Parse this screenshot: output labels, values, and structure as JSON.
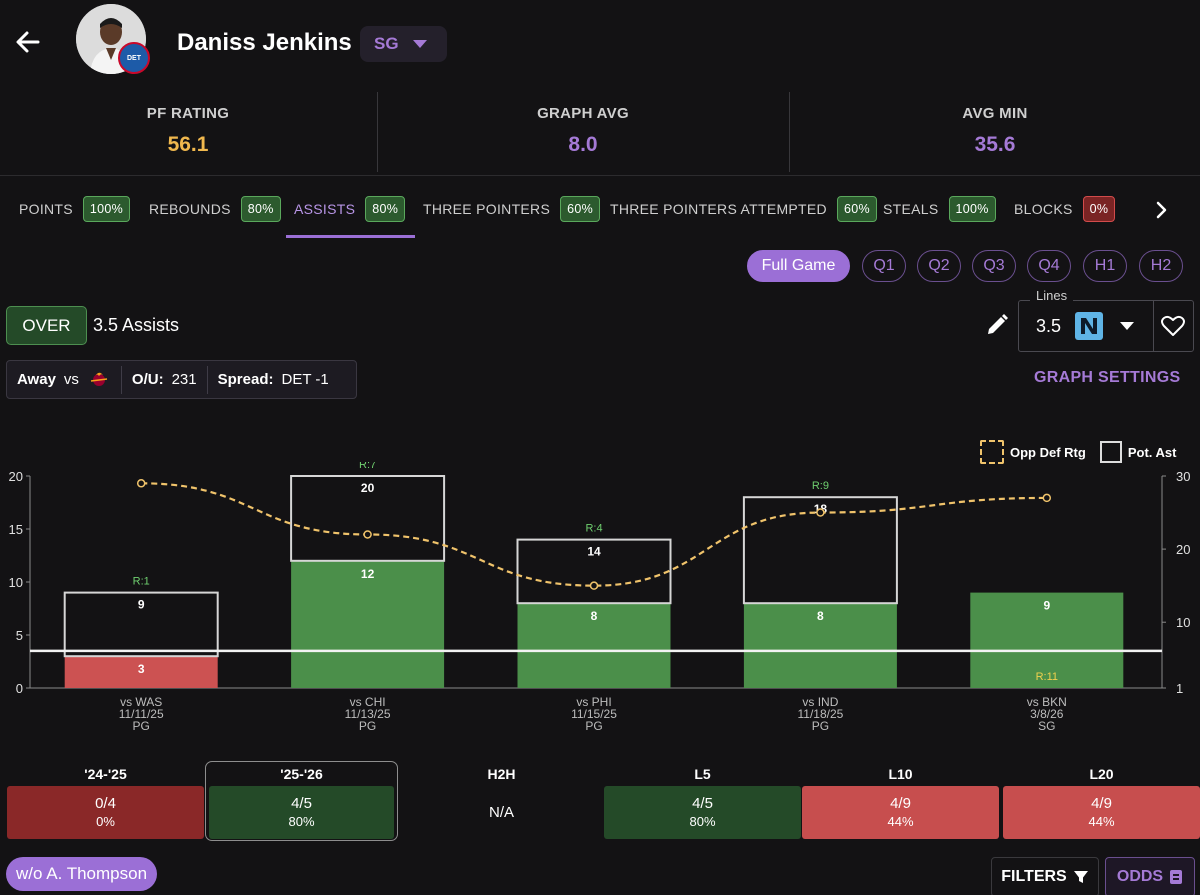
{
  "player": {
    "name": "Daniss Jenkins",
    "position": "SG",
    "team_logo_text": "DET"
  },
  "stats": [
    {
      "label": "PF RATING",
      "value": "56.1",
      "color": "#f0b84e"
    },
    {
      "label": "GRAPH AVG",
      "value": "8.0",
      "color": "#a57ad6"
    },
    {
      "label": "AVG MIN",
      "value": "35.6",
      "color": "#a57ad6"
    }
  ],
  "tabs": [
    {
      "label": "POINTS",
      "badge": "100%",
      "color": "green"
    },
    {
      "label": "REBOUNDS",
      "badge": "80%",
      "color": "green"
    },
    {
      "label": "ASSISTS",
      "badge": "80%",
      "color": "green",
      "active": true
    },
    {
      "label": "THREE POINTERS",
      "badge": "60%",
      "color": "green"
    },
    {
      "label": "THREE POINTERS ATTEMPTED",
      "badge": "60%",
      "color": "green"
    },
    {
      "label": "STEALS",
      "badge": "100%",
      "color": "green"
    },
    {
      "label": "BLOCKS",
      "badge": "0%",
      "color": "red"
    }
  ],
  "periods": [
    "Full Game",
    "Q1",
    "Q2",
    "Q3",
    "Q4",
    "H1",
    "H2"
  ],
  "line": {
    "side": "OVER",
    "text": "3.5 Assists",
    "lines_label": "Lines",
    "lines_value": "3.5"
  },
  "context": {
    "location": "Away",
    "vs": "vs",
    "ou_label": "O/U:",
    "ou_value": "231",
    "spread_label": "Spread:",
    "spread_value": "DET -1"
  },
  "graph_settings": "GRAPH SETTINGS",
  "legend": {
    "def": "Opp Def Rtg",
    "pot": "Pot. Ast"
  },
  "chart_data": {
    "type": "bar",
    "categories": [
      "vs WAS",
      "vs CHI",
      "vs PHI",
      "vs IND",
      "vs BKN"
    ],
    "dates": [
      "11/11/25",
      "11/13/25",
      "11/15/25",
      "11/18/25",
      "3/8/26"
    ],
    "positions": [
      "PG",
      "PG",
      "PG",
      "PG",
      "SG"
    ],
    "values": [
      3,
      12,
      8,
      8,
      9
    ],
    "potential_assists": [
      9,
      20,
      14,
      18,
      null
    ],
    "rebound_labels": [
      "R:1",
      "R:7",
      "R:4",
      "R:9",
      "R:11"
    ],
    "opp_def_rtg": [
      29,
      22,
      15,
      25,
      27
    ],
    "line": 3.5,
    "ylim": [
      0,
      20
    ],
    "yticks": [
      0,
      5,
      10,
      15,
      20
    ],
    "y2ticks": [
      1,
      10,
      20,
      30
    ],
    "y2lim": [
      1,
      30
    ],
    "colors": {
      "over": "#4b8f4a",
      "under": "#cc5252"
    }
  },
  "splits": [
    {
      "label": "'24-'25",
      "value": "0/4",
      "pct": "0%",
      "bg": "#8a2828"
    },
    {
      "label": "'25-'26",
      "value": "4/5",
      "pct": "80%",
      "bg": "#244a28",
      "selected": true
    },
    {
      "label": "H2H",
      "value": "N/A",
      "pct": "",
      "bg": "transparent"
    },
    {
      "label": "L5",
      "value": "4/5",
      "pct": "80%",
      "bg": "#244a28"
    },
    {
      "label": "L10",
      "value": "4/9",
      "pct": "44%",
      "bg": "#c74e4e"
    },
    {
      "label": "L20",
      "value": "4/9",
      "pct": "44%",
      "bg": "#c74e4e"
    }
  ],
  "filters": {
    "chip": "w/o A. Thompson",
    "filters_label": "FILTERS",
    "odds_label": "ODDS"
  }
}
